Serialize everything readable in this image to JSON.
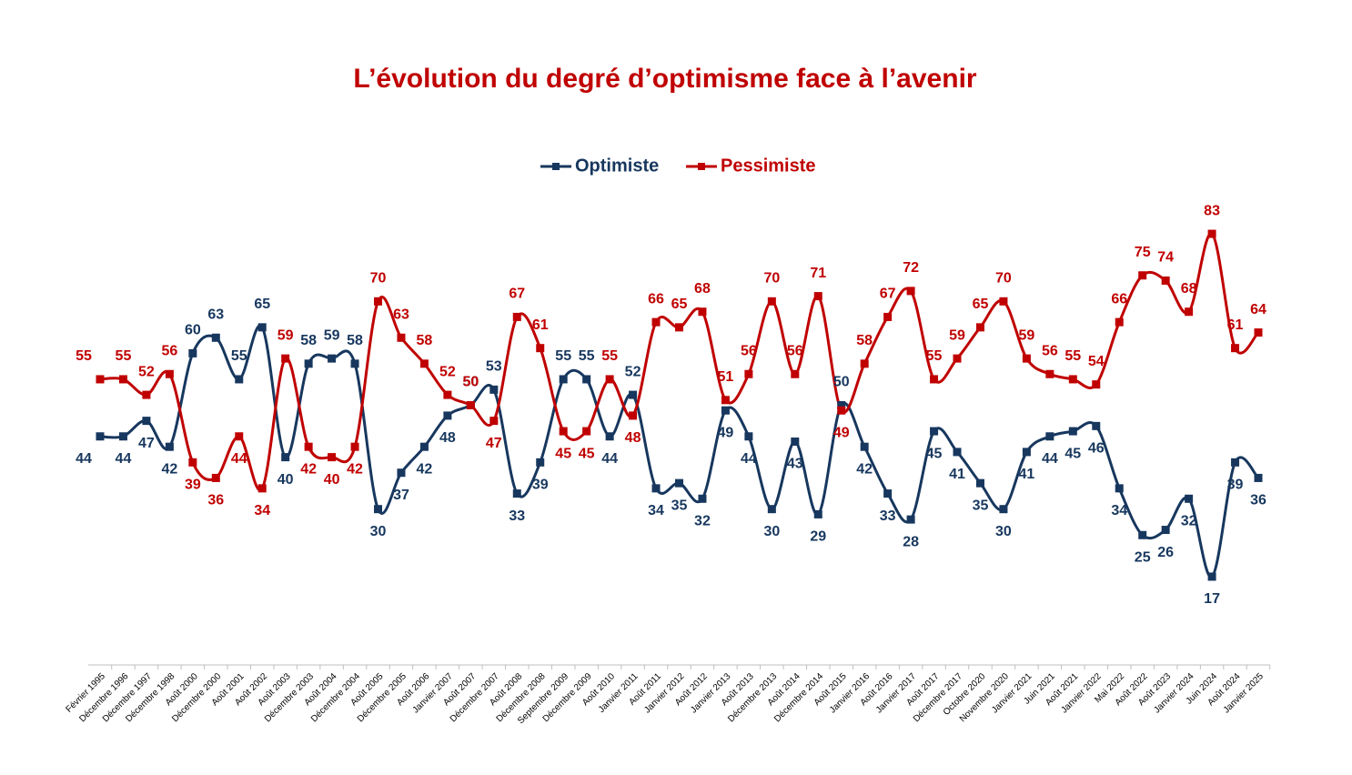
{
  "chart_data": {
    "type": "line",
    "title": "L’évolution du degré d’optimisme face à l’avenir",
    "categories": [
      "Février 1995",
      "Décembre 1996",
      "Décembre 1997",
      "Décembre 1998",
      "Août 2000",
      "Décembre 2000",
      "Août 2001",
      "Août 2002",
      "Août 2003",
      "Décembre 2003",
      "Août 2004",
      "Décembre 2004",
      "Août 2005",
      "Décembre 2005",
      "Août 2006",
      "Janvier 2007",
      "Août 2007",
      "Décembre 2007",
      "Août 2008",
      "Décembre 2008",
      "Septembre 2009",
      "Décembre 2009",
      "Août 2010",
      "Janvier 2011",
      "Août 2011",
      "Janvier 2012",
      "Août 2012",
      "Janvier 2013",
      "Août 2013",
      "Décembre 2013",
      "Août 2014",
      "Décembre 2014",
      "Août 2015",
      "Janvier 2016",
      "Août 2016",
      "Janvier 2017",
      "Août 2017",
      "Décembre 2017",
      "Octobre 2020",
      "Novembre 2020",
      "Janvier 2021",
      "Juin 2021",
      "Août 2021",
      "Janvier 2022",
      "Mai 2022",
      "Août 2022",
      "Août 2023",
      "Janvier 2024",
      "Juin 2024",
      "Août 2024",
      "Janvier 2025"
    ],
    "series": [
      {
        "name": "Optimiste",
        "color": "#17375e",
        "values": [
          44,
          44,
          47,
          42,
          60,
          63,
          55,
          65,
          40,
          58,
          59,
          58,
          30,
          37,
          42,
          48,
          50,
          53,
          33,
          39,
          55,
          55,
          44,
          52,
          34,
          35,
          32,
          49,
          44,
          30,
          43,
          29,
          50,
          42,
          33,
          28,
          45,
          41,
          35,
          30,
          41,
          44,
          45,
          46,
          34,
          25,
          26,
          32,
          17,
          39,
          36
        ]
      },
      {
        "name": "Pessimiste",
        "color": "#c00000",
        "values": [
          55,
          55,
          52,
          56,
          39,
          36,
          44,
          34,
          59,
          42,
          40,
          42,
          70,
          63,
          58,
          52,
          50,
          47,
          67,
          61,
          45,
          45,
          55,
          48,
          66,
          65,
          68,
          51,
          56,
          70,
          56,
          71,
          49,
          58,
          67,
          72,
          55,
          59,
          65,
          70,
          59,
          56,
          55,
          54,
          66,
          75,
          74,
          68,
          83,
          61,
          64
        ]
      }
    ],
    "ylim": [
      0,
      100
    ],
    "legend": "top"
  }
}
